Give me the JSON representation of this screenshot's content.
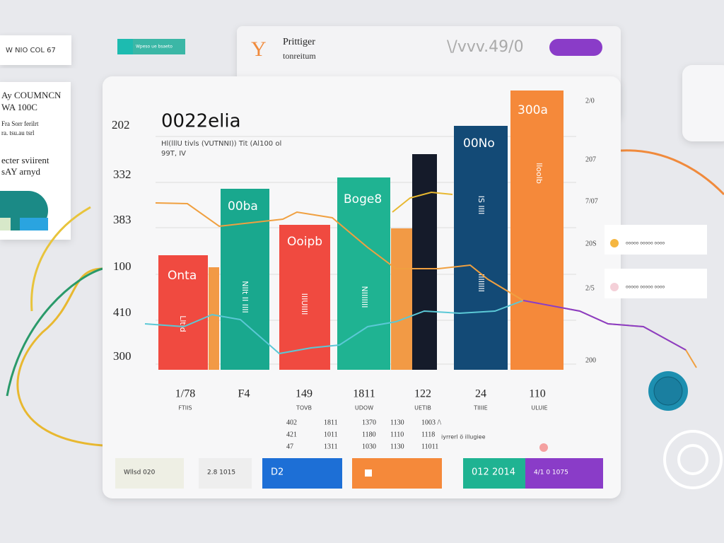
{
  "side_top": {
    "label": "W NIO COL 67",
    "tag": "Wpeso ue bsaeto"
  },
  "header": {
    "logo": "Y",
    "title": "Prittiger",
    "subtitle": "tonreitum",
    "code": "\\/vvv.49/0"
  },
  "side_panel": {
    "lines": [
      "Ay COUMNCN",
      "WA 100C",
      "Fra Sorr ferilrt",
      "ra. tsu.au tsrl",
      "ecter sviirent",
      "sAY arnyd"
    ]
  },
  "main": {
    "title": "0022elia",
    "left_label": "202",
    "subtitle": "Hl(lllU tivls (VUTNNI)) Tit (Al100 ol",
    "subtitle2": "99T, IV",
    "left_axis": [
      "332",
      "383",
      "100",
      "410",
      "300"
    ],
    "right_axis": [
      "2/0",
      "207",
      "7/07",
      "20S",
      "2/5",
      "200"
    ],
    "bar_labels": [
      "Onta",
      "00ba",
      "Ooipb",
      "Boge8",
      "00No",
      "300a"
    ],
    "bar_vertical": [
      "Lltid",
      "NIIt II IIII",
      "IIIUIIII",
      "NIIIIIII",
      "IS IIII",
      "IIIIIIII",
      "lloolb"
    ],
    "x_labels": [
      "1/78",
      "F4",
      "149",
      "1811",
      "122",
      "24",
      "110"
    ],
    "x_sub": [
      "FTIIS",
      "TOVB",
      "UDOW",
      "UETIB",
      "TIIIIE",
      "ULUIE"
    ],
    "table": [
      [
        "402",
        "1811",
        "1370",
        "1130",
        "1003 /\\"
      ],
      [
        "421",
        "1011",
        "1180",
        "1110",
        "1118"
      ],
      [
        "47",
        "1311",
        "1030",
        "1130",
        "11011"
      ]
    ],
    "table_note": "iyrrerl ö illugiee",
    "buttons": [
      "Wllsd 020",
      "2.8 1015",
      "D2",
      "012 2014",
      "4/1 0 1075"
    ]
  },
  "right_notes": [
    "ooooo ooooo oooo",
    "ooooo ooooo oooo"
  ]
}
